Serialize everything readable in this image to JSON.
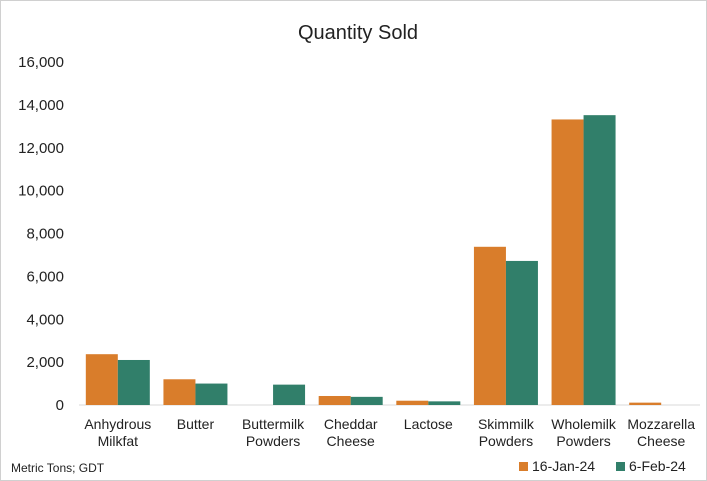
{
  "chart_data": {
    "type": "bar",
    "title": "Quantity Sold",
    "categories": [
      [
        "Anhydrous",
        "Milkfat"
      ],
      [
        "Butter"
      ],
      [
        "Buttermilk",
        "Powders"
      ],
      [
        "Cheddar",
        "Cheese"
      ],
      [
        "Lactose"
      ],
      [
        "Skimmilk",
        "Powders"
      ],
      [
        "Wholemilk",
        "Powders"
      ],
      [
        "Mozzarella",
        "Cheese"
      ]
    ],
    "series": [
      {
        "name": "16-Jan-24",
        "color": "#D97D2B",
        "values": [
          2370,
          1200,
          0,
          420,
          200,
          7380,
          13320,
          110
        ]
      },
      {
        "name": "6-Feb-24",
        "color": "#317F6A",
        "values": [
          2100,
          1000,
          950,
          380,
          170,
          6720,
          13520,
          0
        ]
      }
    ],
    "ylim": [
      0,
      16000
    ],
    "yticks": [
      "0",
      "2,000",
      "4,000",
      "6,000",
      "8,000",
      "10,000",
      "12,000",
      "14,000",
      "16,000"
    ],
    "grid": false,
    "legend_position": "bottom-right",
    "note": "Metric Tons; GDT"
  }
}
